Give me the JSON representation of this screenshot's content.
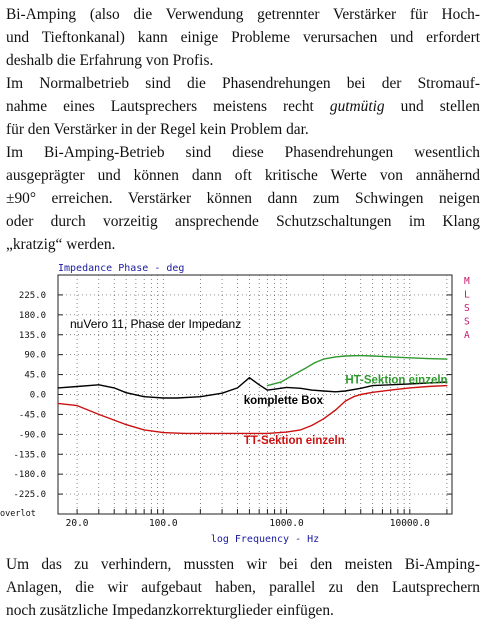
{
  "text": {
    "p1": [
      "Bi-Amping (also die Verwendung getrennter Verstärker für Hoch-",
      "und Tieftonkanal) kann einige Probleme verursachen und erfordert",
      "deshalb die Erfahrung von Profis."
    ],
    "p2_l1": "Im Normalbetrieb sind die Phasendrehungen bei der Stromauf-",
    "p2_l2_a": "nahme eines Lautsprechers meistens recht ",
    "p2_l2_em": "gutmütig",
    "p2_l2_b": " und stellen",
    "p2_l3": "für den Verstärker in der Regel kein Problem dar.",
    "p3": [
      "Im Bi-Amping-Betrieb sind diese Phasendrehungen wesentlich",
      "ausgeprägter und können dann oft kritische Werte von annähernd",
      "±90° erreichen. Verstärker können dann zum Schwingen neigen",
      "oder durch vorzeitig ansprechende Schutzschaltungen im Klang",
      "„kratzig“ werden."
    ],
    "p4": [
      "Um das zu verhindern, mussten wir bei den meisten Bi-Amping-",
      "Anlagen, die wir aufgebaut haben, parallel zu den Lautsprechern",
      "noch zusätzliche Impedanzkorrekturglieder einfügen."
    ]
  },
  "chart_data": {
    "type": "line",
    "title": "Impedance Phase - deg",
    "xlabel": "log Frequency - Hz",
    "ylabel": "",
    "side_label": "MLSSA",
    "corner_label": "overlot",
    "inner_title": "nuVero 11, Phase der Impedanz",
    "x_scale": "log",
    "xlim": [
      14,
      22000
    ],
    "ylim": [
      -270,
      270
    ],
    "x_ticks": [
      {
        "value": 20,
        "label": "20.0"
      },
      {
        "value": 100,
        "label": "100.0"
      },
      {
        "value": 1000,
        "label": "1000.0"
      },
      {
        "value": 10000,
        "label": "10000.0"
      }
    ],
    "y_ticks": [
      {
        "value": 225,
        "label": "225.0"
      },
      {
        "value": 180,
        "label": "180.0"
      },
      {
        "value": 135,
        "label": "135.0"
      },
      {
        "value": 90,
        "label": "90.0"
      },
      {
        "value": 45,
        "label": "45.0"
      },
      {
        "value": 0,
        "label": "0.0"
      },
      {
        "value": -45,
        "label": "-45.0"
      },
      {
        "value": -90,
        "label": "-90.0"
      },
      {
        "value": -135,
        "label": "-135.0"
      },
      {
        "value": -180,
        "label": "-180.0"
      },
      {
        "value": -225,
        "label": "-225.0"
      }
    ],
    "grid": true,
    "series": [
      {
        "name": "HT-Sektion einzeln",
        "color": "#2e9a2e",
        "label_anchor": [
          3000,
          25
        ],
        "x": [
          700,
          900,
          1100,
          1400,
          1700,
          2000,
          2500,
          3000,
          4000,
          5000,
          7000,
          10000,
          14000,
          20000
        ],
        "y": [
          20,
          28,
          42,
          58,
          72,
          80,
          85,
          87,
          88,
          87,
          85,
          83,
          81,
          80
        ]
      },
      {
        "name": "komplette Box",
        "color": "#000000",
        "label_anchor": [
          450,
          -22
        ],
        "x": [
          14,
          20,
          30,
          40,
          50,
          70,
          100,
          130,
          200,
          300,
          400,
          500,
          600,
          700,
          800,
          1000,
          1300,
          1600,
          2000,
          2500,
          3000,
          4000,
          5000,
          7000,
          10000,
          14000,
          20000
        ],
        "y": [
          15,
          18,
          22,
          15,
          4,
          -5,
          -8,
          -8,
          -5,
          3,
          15,
          38,
          22,
          10,
          12,
          16,
          14,
          10,
          8,
          6,
          8,
          14,
          20,
          22,
          24,
          26,
          28
        ]
      },
      {
        "name": "TT-Sektion einzeln",
        "color": "#cc1111",
        "label_anchor": [
          450,
          -112
        ],
        "x": [
          14,
          20,
          30,
          50,
          70,
          100,
          150,
          200,
          300,
          500,
          700,
          1000,
          1300,
          1600,
          2000,
          2500,
          3000,
          3500,
          4000,
          5000,
          7000,
          10000,
          14000,
          20000
        ],
        "y": [
          -20,
          -25,
          -45,
          -68,
          -80,
          -86,
          -88,
          -88,
          -88,
          -88,
          -88,
          -85,
          -80,
          -70,
          -55,
          -35,
          -15,
          -5,
          0,
          5,
          10,
          15,
          18,
          20
        ]
      }
    ]
  },
  "colors": {
    "text": "#111111",
    "mlssa": "#c2186f",
    "axis_title": "#1a1aa0"
  }
}
